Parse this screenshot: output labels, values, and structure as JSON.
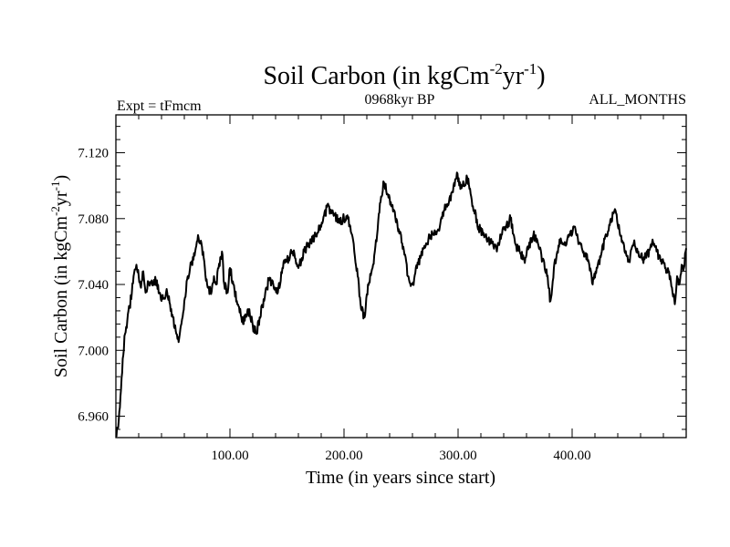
{
  "chart_data": {
    "type": "line",
    "title": "Soil Carbon (in kgCm",
    "title_sup1": "-2",
    "title_mid": "yr",
    "title_sup2": "-1",
    "title_end": ")",
    "subtitle_left": "Expt = tFmcm",
    "subtitle_center": "0968kyr BP",
    "subtitle_right": "ALL_MONTHS",
    "xlabel": "Time (in years since start)",
    "ylabel": "Soil Carbon (in kgCm",
    "ylabel_sup1": "-2",
    "ylabel_mid": "yr",
    "ylabel_sup2": "-1",
    "ylabel_end": ")",
    "xlim": [
      0,
      500
    ],
    "ylim": [
      6.947,
      7.143
    ],
    "x_ticks": [
      100,
      200,
      300,
      400
    ],
    "x_tick_labels": [
      "100.00",
      "200.00",
      "300.00",
      "400.00"
    ],
    "y_ticks": [
      6.96,
      7.0,
      7.04,
      7.08,
      7.12
    ],
    "y_tick_labels": [
      "6.960",
      "7.000",
      "7.040",
      "7.080",
      "7.120"
    ],
    "line_color": "#000000",
    "series": [
      {
        "name": "Soil Carbon",
        "x": [
          0,
          2,
          4,
          6,
          8,
          10,
          12,
          14,
          16,
          18,
          20,
          22,
          24,
          26,
          28,
          30,
          35,
          40,
          45,
          50,
          53,
          55,
          57,
          60,
          63,
          65,
          68,
          70,
          72,
          75,
          78,
          80,
          83,
          86,
          88,
          90,
          93,
          95,
          98,
          100,
          103,
          106,
          110,
          113,
          116,
          120,
          123,
          126,
          130,
          134,
          138,
          142,
          146,
          150,
          155,
          160,
          165,
          170,
          175,
          180,
          185,
          190,
          195,
          200,
          203,
          206,
          209,
          212,
          215,
          218,
          221,
          225,
          229,
          232,
          235,
          238,
          241,
          244,
          247,
          250,
          253,
          256,
          260,
          264,
          268,
          272,
          276,
          280,
          284,
          288,
          292,
          296,
          299,
          302,
          305,
          308,
          311,
          314,
          318,
          322,
          326,
          330,
          334,
          338,
          342,
          346,
          350,
          354,
          358,
          362,
          366,
          370,
          374,
          378,
          381,
          384,
          387,
          390,
          394,
          398,
          402,
          406,
          410,
          414,
          418,
          422,
          426,
          430,
          434,
          438,
          442,
          446,
          450,
          454,
          458,
          462,
          466,
          470,
          474,
          478,
          482,
          486,
          488,
          490,
          492,
          494,
          496,
          498,
          500
        ],
        "values": [
          6.948,
          6.953,
          6.972,
          6.995,
          7.01,
          7.018,
          7.026,
          7.035,
          7.047,
          7.052,
          7.045,
          7.038,
          7.048,
          7.035,
          7.042,
          7.04,
          7.042,
          7.03,
          7.035,
          7.02,
          7.01,
          7.005,
          7.015,
          7.03,
          7.045,
          7.05,
          7.055,
          7.062,
          7.07,
          7.065,
          7.05,
          7.04,
          7.035,
          7.045,
          7.04,
          7.05,
          7.06,
          7.04,
          7.035,
          7.05,
          7.04,
          7.03,
          7.02,
          7.018,
          7.025,
          7.015,
          7.01,
          7.02,
          7.03,
          7.043,
          7.04,
          7.035,
          7.05,
          7.055,
          7.06,
          7.05,
          7.06,
          7.065,
          7.07,
          7.075,
          7.087,
          7.085,
          7.078,
          7.08,
          7.082,
          7.072,
          7.06,
          7.045,
          7.025,
          7.02,
          7.04,
          7.05,
          7.07,
          7.09,
          7.102,
          7.095,
          7.09,
          7.085,
          7.075,
          7.07,
          7.058,
          7.045,
          7.04,
          7.05,
          7.06,
          7.065,
          7.07,
          7.072,
          7.075,
          7.085,
          7.09,
          7.1,
          7.108,
          7.098,
          7.1,
          7.105,
          7.095,
          7.085,
          7.075,
          7.07,
          7.068,
          7.065,
          7.06,
          7.07,
          7.075,
          7.08,
          7.065,
          7.06,
          7.055,
          7.063,
          7.07,
          7.065,
          7.055,
          7.045,
          7.03,
          7.05,
          7.06,
          7.068,
          7.065,
          7.07,
          7.075,
          7.065,
          7.06,
          7.055,
          7.04,
          7.05,
          7.06,
          7.07,
          7.08,
          7.085,
          7.07,
          7.06,
          7.055,
          7.065,
          7.06,
          7.055,
          7.058,
          7.065,
          7.06,
          7.055,
          7.05,
          7.045,
          7.035,
          7.028,
          7.045,
          7.04,
          7.052,
          7.05,
          7.062
        ]
      }
    ]
  }
}
